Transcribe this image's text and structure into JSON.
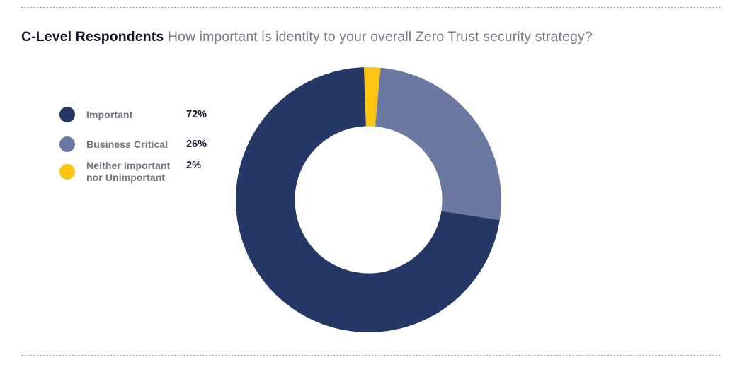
{
  "header": {
    "audience": "C-Level Respondents",
    "question": "How important is identity to your overall Zero Trust security strategy?"
  },
  "chart_data": {
    "type": "pie",
    "subtype": "donut",
    "title": "C-Level Respondents: How important is identity to your overall Zero Trust security strategy?",
    "series": [
      {
        "label": "Important",
        "value": 72,
        "pct_label": "72%",
        "color": "#253764"
      },
      {
        "label": "Business Critical",
        "value": 26,
        "pct_label": "26%",
        "color": "#6B78A1"
      },
      {
        "label": "Neither Important nor Unimportant",
        "value": 2,
        "pct_label": "2%",
        "color": "#FCC514"
      }
    ],
    "total": 100,
    "start_angle_deg": -2,
    "direction": "clockwise",
    "draw_order": [
      2,
      1,
      0
    ],
    "inner_radius_ratio": 0.555,
    "legend_position": "left",
    "hole_color": "#ffffff"
  }
}
